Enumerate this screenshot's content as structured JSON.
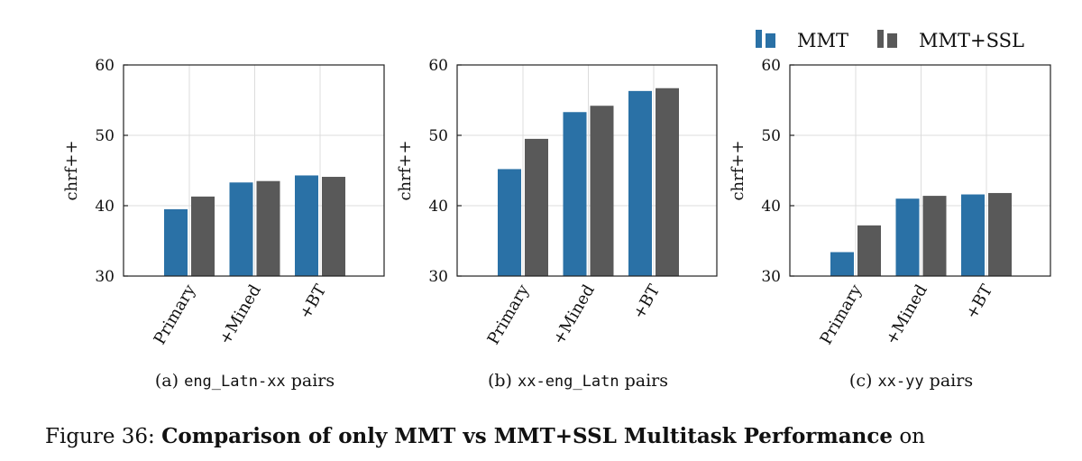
{
  "legend": [
    {
      "name": "MMT",
      "color": "#2a71a6"
    },
    {
      "name": "MMT+SSL",
      "color": "#595959"
    }
  ],
  "chart_data": [
    {
      "type": "bar",
      "categories": [
        "Primary",
        "+Mined",
        "+BT"
      ],
      "series": [
        {
          "name": "MMT",
          "values": [
            39.5,
            43.3,
            44.3
          ]
        },
        {
          "name": "MMT+SSL",
          "values": [
            41.3,
            43.5,
            44.1
          ]
        }
      ],
      "ylabel": "chrf++",
      "ylim": [
        30,
        60
      ],
      "yticks": [
        30,
        40,
        50,
        60
      ],
      "grid": true,
      "caption": {
        "prefix": "(a) ",
        "code": "eng_Latn-xx",
        "suffix": " pairs"
      }
    },
    {
      "type": "bar",
      "categories": [
        "Primary",
        "+Mined",
        "+BT"
      ],
      "series": [
        {
          "name": "MMT",
          "values": [
            45.2,
            53.3,
            56.3
          ]
        },
        {
          "name": "MMT+SSL",
          "values": [
            49.5,
            54.2,
            56.7
          ]
        }
      ],
      "ylabel": "chrf++",
      "ylim": [
        30,
        60
      ],
      "yticks": [
        30,
        40,
        50,
        60
      ],
      "grid": true,
      "caption": {
        "prefix": "(b) ",
        "code": "xx-eng_Latn",
        "suffix": " pairs"
      }
    },
    {
      "type": "bar",
      "categories": [
        "Primary",
        "+Mined",
        "+BT"
      ],
      "series": [
        {
          "name": "MMT",
          "values": [
            33.4,
            41.0,
            41.6
          ]
        },
        {
          "name": "MMT+SSL",
          "values": [
            37.2,
            41.4,
            41.8
          ]
        }
      ],
      "ylabel": "chrf++",
      "ylim": [
        30,
        60
      ],
      "yticks": [
        30,
        40,
        50,
        60
      ],
      "grid": true,
      "caption": {
        "prefix": "(c) ",
        "code": "xx-yy",
        "suffix": " pairs"
      }
    }
  ],
  "figure_caption": {
    "label": "Figure 36: ",
    "bold": "Comparison of only MMT vs MMT+SSL Multitask Performance",
    "tail": " on"
  }
}
